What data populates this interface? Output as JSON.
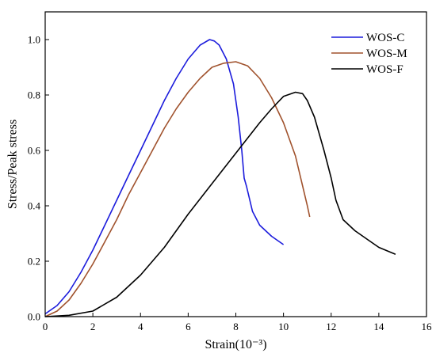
{
  "chart_data": {
    "type": "line",
    "xlabel": "Strain(10⁻³)",
    "ylabel": "Stress/Peak stress",
    "xlim": [
      0,
      16
    ],
    "ylim": [
      0,
      1.1
    ],
    "xticks": [
      0,
      2,
      4,
      6,
      8,
      10,
      12,
      14,
      16
    ],
    "yticks": [
      0.0,
      0.2,
      0.4,
      0.6,
      0.8,
      1.0
    ],
    "xtick_labels": [
      "0",
      "2",
      "4",
      "6",
      "8",
      "10",
      "12",
      "14",
      "16"
    ],
    "ytick_labels": [
      "0.0",
      "0.2",
      "0.4",
      "0.6",
      "0.8",
      "1.0"
    ],
    "grid": false,
    "legend_position": "top-right",
    "series": [
      {
        "name": "WOS-C",
        "color": "#1c1cdc",
        "x": [
          0,
          0.5,
          1,
          1.5,
          2,
          2.5,
          3,
          3.5,
          4,
          4.5,
          5,
          5.5,
          6,
          6.5,
          6.9,
          7.1,
          7.3,
          7.6,
          7.9,
          8.1,
          8.25,
          8.35,
          8.45,
          8.7,
          9,
          9.5,
          10
        ],
        "y": [
          0.01,
          0.04,
          0.09,
          0.16,
          0.24,
          0.33,
          0.42,
          0.51,
          0.6,
          0.69,
          0.78,
          0.86,
          0.93,
          0.98,
          1.0,
          0.995,
          0.98,
          0.93,
          0.84,
          0.72,
          0.6,
          0.5,
          0.47,
          0.38,
          0.33,
          0.29,
          0.26
        ]
      },
      {
        "name": "WOS-M",
        "color": "#a0522d",
        "x": [
          0,
          0.5,
          1,
          1.5,
          2,
          2.5,
          3,
          3.5,
          4,
          4.5,
          5,
          5.5,
          6,
          6.5,
          7,
          7.5,
          8,
          8.5,
          9,
          9.5,
          10,
          10.5,
          11,
          11.1
        ],
        "y": [
          0.0,
          0.02,
          0.06,
          0.12,
          0.19,
          0.27,
          0.35,
          0.44,
          0.52,
          0.6,
          0.68,
          0.75,
          0.81,
          0.86,
          0.9,
          0.915,
          0.92,
          0.905,
          0.86,
          0.79,
          0.7,
          0.58,
          0.4,
          0.36
        ]
      },
      {
        "name": "WOS-F",
        "color": "#000000",
        "x": [
          0,
          1,
          2,
          3,
          4,
          5,
          6,
          7,
          8,
          9,
          9.5,
          10,
          10.5,
          10.8,
          11,
          11.3,
          11.7,
          12,
          12.2,
          12.5,
          13,
          13.5,
          14,
          14.7
        ],
        "y": [
          0.0,
          0.005,
          0.02,
          0.07,
          0.15,
          0.25,
          0.37,
          0.48,
          0.59,
          0.7,
          0.75,
          0.795,
          0.81,
          0.805,
          0.78,
          0.72,
          0.6,
          0.5,
          0.42,
          0.35,
          0.31,
          0.28,
          0.25,
          0.225
        ]
      }
    ]
  }
}
